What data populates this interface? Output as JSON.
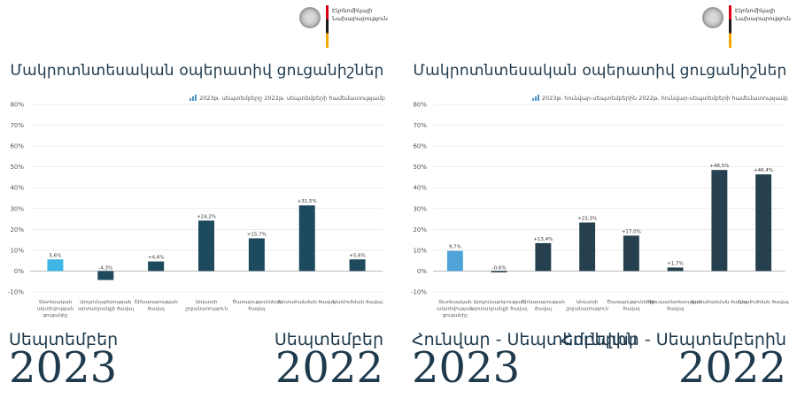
{
  "panels": [
    {
      "logo_text": "Էկոնոմիկայի\nՆախարարություն",
      "title": "Մակրոտնտեսական օպերատիվ ցուցանիշներ",
      "subtitle": "2023թ. սեպտեմբերը 2022թ. սեպտեմբերի համեմատությամբ",
      "period_left": "Սեպտեմբեր",
      "year_left": "2023",
      "period_right": "Սեպտեմբեր",
      "year_right": "2022"
    },
    {
      "logo_text": "Էկոնոմիկայի\nՆախարարություն",
      "title": "Մակրոտնտեսական օպերատիվ ցուցանիշներ",
      "subtitle": "2023թ. հունվար-սեպտեմբերին 2022թ. հունվար-սեպտեմբերի համեմատությամբ",
      "period_left": "Հունվար - Սեպտեմբերին",
      "year_left": "2023",
      "period_right": "Հունվար - Սեպտեմբերին",
      "year_right": "2022"
    }
  ],
  "chart_data": [
    {
      "type": "bar",
      "ylim": [
        -10,
        80
      ],
      "yticks": [
        "-10%",
        "0%",
        "10%",
        "20%",
        "30%",
        "40%",
        "50%",
        "60%",
        "70%",
        "80%"
      ],
      "grid": true,
      "categories": [
        "Տնտեսական ակտիվության ցուցանիշ",
        "Արդյունաբերության արտադրանքի ծավալ",
        "Շինարարության ծավալ",
        "Առևտրի շրջանառություն",
        "Ծառայությունների ծավալ",
        "Արտահանման ծավալ",
        "Ներմուծման ծավալ"
      ],
      "values": [
        5.6,
        -4.3,
        4.6,
        24.2,
        15.7,
        31.5,
        5.6
      ],
      "data_labels": [
        "5,6%",
        "-4,3%",
        "+4,6%",
        "+24,2%",
        "+15,7%",
        "+31,5%",
        "+5,6%"
      ],
      "highlight_color": "#3fb5e6",
      "bar_color": "#1d4a5c"
    },
    {
      "type": "bar",
      "ylim": [
        -10,
        80
      ],
      "yticks": [
        "-10%",
        "0%",
        "10%",
        "20%",
        "30%",
        "40%",
        "50%",
        "60%",
        "70%",
        "80%"
      ],
      "grid": true,
      "categories": [
        "Տնտեսական ակտիվության ցուցանիշ",
        "Արդյունաբերության արտադրանքի ծավալ",
        "Շինարարության ծավալ",
        "Առևտրի շրջանառություն",
        "Ծառայությունների ծավալ",
        "Գյուղատնտեսության ծավալ",
        "Արտահանման ծավալ",
        "Ներմուծման ծավալ"
      ],
      "values": [
        9.7,
        -0.6,
        13.4,
        23.3,
        17.0,
        1.7,
        48.5,
        46.4
      ],
      "data_labels": [
        "9,7%",
        "-0,6%",
        "+13,4%",
        "+23,3%",
        "+17,0%",
        "+1,7%",
        "+48,5%",
        "+46,4%"
      ],
      "highlight_color": "#4fa3d6",
      "bar_color": "#26404f"
    }
  ]
}
